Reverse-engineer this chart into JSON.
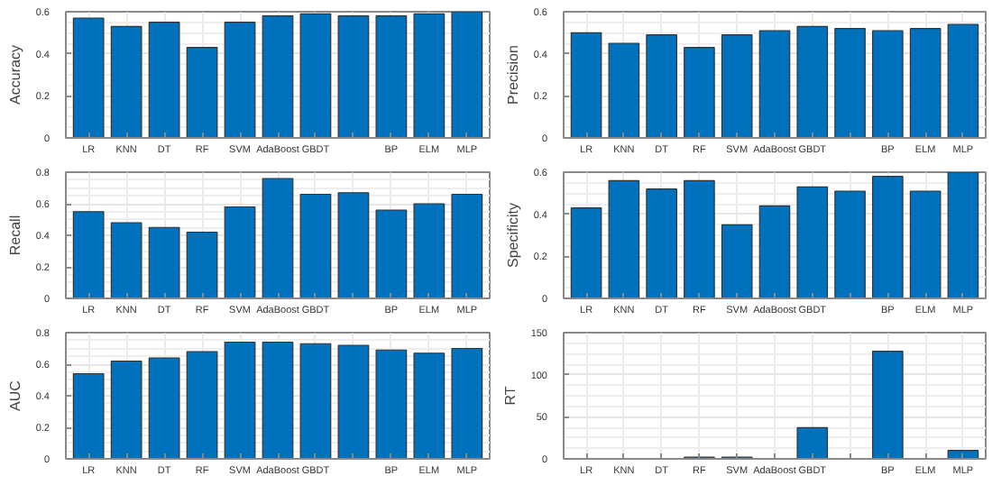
{
  "chart_data": [
    {
      "type": "bar",
      "ylabel": "Accuracy",
      "categories": [
        "LR",
        "KNN",
        "DT",
        "RF",
        "SVM",
        "AdaBoost",
        "GBDT",
        null,
        "BP",
        "ELM",
        "MLP"
      ],
      "color": "#0072bd",
      "values": [
        0.57,
        0.53,
        0.55,
        0.43,
        0.55,
        0.58,
        0.59,
        0.58,
        0.58,
        0.59,
        0.6
      ],
      "ylim": [
        0,
        0.6
      ],
      "yticks": [
        0,
        0.2,
        0.4,
        0.6
      ],
      "grid": true
    },
    {
      "type": "bar",
      "ylabel": "Precision",
      "categories": [
        "LR",
        "KNN",
        "DT",
        "RF",
        "SVM",
        "AdaBoost",
        "GBDT",
        null,
        "BP",
        "ELM",
        "MLP"
      ],
      "color": "#0072bd",
      "values": [
        0.5,
        0.45,
        0.49,
        0.43,
        0.49,
        0.51,
        0.53,
        0.52,
        0.51,
        0.52,
        0.54
      ],
      "ylim": [
        0,
        0.6
      ],
      "yticks": [
        0,
        0.2,
        0.4,
        0.6
      ],
      "grid": true
    },
    {
      "type": "bar",
      "ylabel": "Recall",
      "categories": [
        "LR",
        "KNN",
        "DT",
        "RF",
        "SVM",
        "AdaBoost",
        "GBDT",
        null,
        "BP",
        "ELM",
        "MLP"
      ],
      "color": "#0072bd",
      "values": [
        0.55,
        0.48,
        0.45,
        0.42,
        0.58,
        0.76,
        0.66,
        0.67,
        0.56,
        0.6,
        0.66
      ],
      "ylim": [
        0,
        0.8
      ],
      "yticks": [
        0,
        0.2,
        0.4,
        0.6,
        0.8
      ],
      "grid": true
    },
    {
      "type": "bar",
      "ylabel": "Specificity",
      "categories": [
        "LR",
        "KNN",
        "DT",
        "RF",
        "SVM",
        "AdaBoost",
        "GBDT",
        null,
        "BP",
        "ELM",
        "MLP"
      ],
      "color": "#0072bd",
      "values": [
        0.43,
        0.56,
        0.52,
        0.56,
        0.35,
        0.44,
        0.53,
        0.51,
        0.58,
        0.51,
        0.6
      ],
      "ylim": [
        0,
        0.6
      ],
      "yticks": [
        0,
        0.2,
        0.4,
        0.6
      ],
      "grid": true
    },
    {
      "type": "bar",
      "ylabel": "AUC",
      "categories": [
        "LR",
        "KNN",
        "DT",
        "RF",
        "SVM",
        "AdaBoost",
        "GBDT",
        null,
        "BP",
        "ELM",
        "MLP"
      ],
      "color": "#0072bd",
      "values": [
        0.54,
        0.62,
        0.64,
        0.68,
        0.74,
        0.74,
        0.73,
        0.72,
        0.69,
        0.67,
        0.7
      ],
      "ylim": [
        0,
        0.8
      ],
      "yticks": [
        0,
        0.2,
        0.4,
        0.6,
        0.8
      ],
      "grid": true
    },
    {
      "type": "bar",
      "ylabel": "RT",
      "categories": [
        "LR",
        "KNN",
        "DT",
        "RF",
        "SVM",
        "AdaBoost",
        "GBDT",
        null,
        "BP",
        "ELM",
        "MLP"
      ],
      "color": "#0072bd",
      "values": [
        0,
        0,
        0,
        2,
        2,
        0,
        37,
        0,
        128,
        0,
        10
      ],
      "ylim": [
        0,
        150
      ],
      "yticks": [
        0,
        50,
        100,
        150
      ],
      "grid": true
    }
  ]
}
